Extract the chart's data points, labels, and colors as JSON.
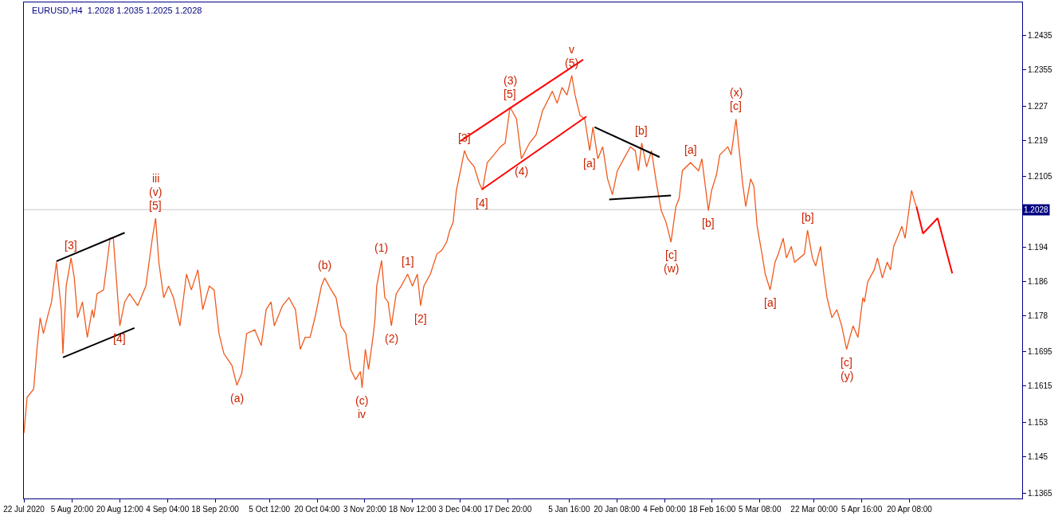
{
  "chart_data": {
    "type": "line",
    "title": "EURUSD,H4  1.2028 1.2035 1.2025 1.2028",
    "xlim": [
      "2020-07-22",
      "2021-05-25"
    ],
    "ylim": [
      1.1352,
      1.2513
    ],
    "xticks": [
      {
        "value": "2020-07-22",
        "label": "22 Jul 2020"
      },
      {
        "value": "2020-08-05T20:00",
        "label": "5 Aug 20:00"
      },
      {
        "value": "2020-08-20T12:00",
        "label": "20 Aug 12:00"
      },
      {
        "value": "2020-09-04T04:00",
        "label": "4 Sep 04:00"
      },
      {
        "value": "2020-09-18T20:00",
        "label": "18 Sep 20:00"
      },
      {
        "value": "2020-10-05T12:00",
        "label": "5 Oct 12:00"
      },
      {
        "value": "2020-10-20T04:00",
        "label": "20 Oct 04:00"
      },
      {
        "value": "2020-11-03T20:00",
        "label": "3 Nov 20:00"
      },
      {
        "value": "2020-11-18T12:00",
        "label": "18 Nov 12:00"
      },
      {
        "value": "2020-12-03T04:00",
        "label": "3 Dec 04:00"
      },
      {
        "value": "2020-12-17T20:00",
        "label": "17 Dec 20:00"
      },
      {
        "value": "2021-01-05T16:00",
        "label": "5 Jan 16:00"
      },
      {
        "value": "2021-01-20T08:00",
        "label": "20 Jan 08:00"
      },
      {
        "value": "2021-02-04T00:00",
        "label": "4 Feb 00:00"
      },
      {
        "value": "2021-02-18T16:00",
        "label": "18 Feb 16:00"
      },
      {
        "value": "2021-03-05T08:00",
        "label": "5 Mar 08:00"
      },
      {
        "value": "2021-03-22T00:00",
        "label": "22 Mar 00:00"
      },
      {
        "value": "2021-04-05T16:00",
        "label": "5 Apr 16:00"
      },
      {
        "value": "2021-04-20T08:00",
        "label": "20 Apr 08:00"
      }
    ],
    "yticks": [
      1.2435,
      1.2355,
      1.227,
      1.219,
      1.2105,
      1.194,
      1.186,
      1.178,
      1.1695,
      1.1615,
      1.153,
      1.145,
      1.1365
    ],
    "grid": false,
    "line_style": "solid",
    "ref_lines": [
      {
        "axis": "y",
        "value": 1.2028,
        "label": "1.2028",
        "color": "#c8c8c8"
      }
    ],
    "series": [
      {
        "color": "#f05a1e",
        "x": [
          "2020-07-22T00:00",
          "2020-07-23T00:00",
          "2020-07-25T00:00",
          "2020-07-26T00:00",
          "2020-07-27T00:00",
          "2020-07-28T00:00",
          "2020-07-29T12:00",
          "2020-07-30T12:00",
          "2020-08-01T00:00",
          "2020-08-02T12:00",
          "2020-08-03T00:00",
          "2020-08-04T00:00",
          "2020-08-05T12:00",
          "2020-08-06T12:00",
          "2020-08-07T12:00",
          "2020-08-09T00:00",
          "2020-08-10T12:00",
          "2020-08-12T00:00",
          "2020-08-12T12:00",
          "2020-08-13T12:00",
          "2020-08-15T12:00",
          "2020-08-17T12:00",
          "2020-08-18T12:00",
          "2020-08-19T12:00",
          "2020-08-20T12:00",
          "2020-08-22T00:00",
          "2020-08-23T12:00",
          "2020-08-26T00:00",
          "2020-08-28T12:00",
          "2020-08-30T12:00",
          "2020-08-31T12:00",
          "2020-09-01T12:00",
          "2020-09-03T00:00",
          "2020-09-04T12:00",
          "2020-09-06T00:00",
          "2020-09-08T00:00",
          "2020-09-10T00:00",
          "2020-09-11T12:00",
          "2020-09-13T12:00",
          "2020-09-15T00:00",
          "2020-09-17T00:00",
          "2020-09-18T12:00",
          "2020-09-20T00:00",
          "2020-09-21T12:00",
          "2020-09-24T00:00",
          "2020-09-25T12:00",
          "2020-09-27T00:00",
          "2020-09-28T12:00",
          "2020-10-01T00:00",
          "2020-10-03T00:00",
          "2020-10-04T12:00",
          "2020-10-06T00:00",
          "2020-10-07T00:00",
          "2020-10-09T12:00",
          "2020-10-11T12:00",
          "2020-10-13T12:00",
          "2020-10-15T00:00",
          "2020-10-16T12:00",
          "2020-10-18T00:00",
          "2020-10-19T12:00",
          "2020-10-21T12:00",
          "2020-10-22T12:00",
          "2020-10-24T12:00",
          "2020-10-26T00:00",
          "2020-10-27T12:00",
          "2020-10-29T00:00",
          "2020-10-30T12:00",
          "2020-11-01T00:00",
          "2020-11-02T12:00",
          "2020-11-03T00:00",
          "2020-11-04T00:00",
          "2020-11-05T00:00",
          "2020-11-06T12:00",
          "2020-11-07T00:00",
          "2020-11-07T12:00",
          "2020-11-09T00:00",
          "2020-11-10T00:00",
          "2020-11-11T00:00",
          "2020-11-12T00:00",
          "2020-11-13T12:00",
          "2020-11-15T00:00",
          "2020-11-17T00:00",
          "2020-11-18T12:00",
          "2020-11-20T00:00",
          "2020-11-21T00:00",
          "2020-11-22T00:00",
          "2020-11-24T00:00",
          "2020-11-26T00:00",
          "2020-11-27T12:00",
          "2020-11-29T00:00",
          "2020-11-30T00:00",
          "2020-12-01T00:00",
          "2020-12-02T00:00",
          "2020-12-03T12:00",
          "2020-12-04T12:00",
          "2020-12-05T12:00",
          "2020-12-07T12:00",
          "2020-12-09T00:00",
          "2020-12-10T00:00",
          "2020-12-11T12:00",
          "2020-12-13T12:00",
          "2020-12-15T12:00",
          "2020-12-17T00:00",
          "2020-12-18T12:00",
          "2020-12-20T12:00",
          "2020-12-22T00:00",
          "2020-12-24T12:00",
          "2020-12-26T12:00",
          "2020-12-28T12:00",
          "2020-12-31T12:00",
          "2021-01-02T00:00",
          "2021-01-03T12:00",
          "2021-01-05T00:00",
          "2021-01-06T12:00",
          "2021-01-07T12:00",
          "2021-01-09T00:00",
          "2021-01-10T12:00",
          "2021-01-12T00:00",
          "2021-01-13T00:00",
          "2021-01-14T12:00",
          "2021-01-16T00:00",
          "2021-01-17T12:00",
          "2021-01-19T00:00",
          "2021-01-20T12:00",
          "2021-01-22T12:00",
          "2021-01-24T12:00",
          "2021-01-26T00:00",
          "2021-01-27T00:00",
          "2021-01-28T00:00",
          "2021-01-29T12:00",
          "2021-01-31T00:00",
          "2021-02-01T12:00",
          "2021-02-03T00:00",
          "2021-02-04T12:00",
          "2021-02-06T00:00",
          "2021-02-07T12:00",
          "2021-02-08T12:00",
          "2021-02-09T12:00",
          "2021-02-12T00:00",
          "2021-02-14T12:00",
          "2021-02-15T12:00",
          "2021-02-17T12:00",
          "2021-02-18T12:00",
          "2021-02-20T00:00",
          "2021-02-21T00:00",
          "2021-02-23T12:00",
          "2021-02-24T12:00",
          "2021-02-26T00:00",
          "2021-02-27T00:00",
          "2021-02-28T00:00",
          "2021-03-01T00:00",
          "2021-03-02T12:00",
          "2021-03-03T12:00",
          "2021-03-04T12:00",
          "2021-03-06T00:00",
          "2021-03-07T00:00",
          "2021-03-08T12:00",
          "2021-03-10T00:00",
          "2021-03-11T00:00",
          "2021-03-12T12:00",
          "2021-03-13T12:00",
          "2021-03-15T00:00",
          "2021-03-16T00:00",
          "2021-03-19T00:00",
          "2021-03-20T00:00",
          "2021-03-21T12:00",
          "2021-03-22T12:00",
          "2021-03-24T00:00",
          "2021-03-25T00:00",
          "2021-03-26T00:00",
          "2021-03-27T12:00",
          "2021-03-29T00:00",
          "2021-03-30T12:00",
          "2021-04-01T00:00",
          "2021-04-02T00:00",
          "2021-04-03T00:00",
          "2021-04-04T12:00",
          "2021-04-06T00:00",
          "2021-04-06T12:00",
          "2021-04-07T12:00",
          "2021-04-09T12:00",
          "2021-04-10T12:00",
          "2021-04-12T00:00",
          "2021-04-13T12:00",
          "2021-04-14T12:00",
          "2021-04-15T12:00",
          "2021-04-17T00:00",
          "2021-04-18T00:00",
          "2021-04-19T00:00",
          "2021-04-20T00:00",
          "2021-04-21T00:00",
          "2021-04-22T00:00",
          "2021-04-22T12:00"
        ],
        "values": [
          1.1505,
          1.1589,
          1.1608,
          1.1701,
          1.1775,
          1.1738,
          1.1784,
          1.1812,
          1.1905,
          1.1794,
          1.1691,
          1.1849,
          1.1915,
          1.1868,
          1.1775,
          1.1812,
          1.1729,
          1.1794,
          1.1775,
          1.1831,
          1.184,
          1.1961,
          1.1961,
          1.1859,
          1.1756,
          1.1812,
          1.1831,
          1.1803,
          1.1849,
          1.1961,
          1.2008,
          1.1905,
          1.1822,
          1.1849,
          1.1822,
          1.1756,
          1.1877,
          1.184,
          1.1887,
          1.1794,
          1.1849,
          1.184,
          1.1738,
          1.1691,
          1.1663,
          1.1617,
          1.1645,
          1.1738,
          1.1747,
          1.171,
          1.1794,
          1.1812,
          1.1756,
          1.1803,
          1.1822,
          1.1794,
          1.1701,
          1.1729,
          1.1729,
          1.1775,
          1.1849,
          1.1868,
          1.184,
          1.1822,
          1.1756,
          1.1738,
          1.1654,
          1.163,
          1.1649,
          1.1611,
          1.1701,
          1.1654,
          1.1738,
          1.1775,
          1.1849,
          1.1909,
          1.1822,
          1.1812,
          1.1756,
          1.1831,
          1.1849,
          1.1877,
          1.1849,
          1.1877,
          1.1803,
          1.1849,
          1.1877,
          1.1924,
          1.1933,
          1.1952,
          1.198,
          1.1998,
          1.2073,
          1.2128,
          1.2166,
          1.2147,
          1.2128,
          1.2091,
          1.2073,
          1.2138,
          1.2156,
          1.2175,
          1.2184,
          1.2268,
          1.224,
          1.2147,
          1.2184,
          1.2203,
          1.2259,
          1.2305,
          1.2277,
          1.2314,
          1.2296,
          1.2342,
          1.2296,
          1.2249,
          1.224,
          1.2166,
          1.2221,
          1.2147,
          1.2175,
          1.21,
          1.2063,
          1.2119,
          1.2147,
          1.2175,
          1.2166,
          1.2119,
          1.2184,
          1.2128,
          1.2166,
          1.2091,
          1.2026,
          1.1998,
          1.1952,
          1.2035,
          1.2054,
          1.2119,
          1.2138,
          1.2119,
          1.2147,
          1.2026,
          1.2073,
          1.211,
          1.2156,
          1.2175,
          1.2156,
          1.224,
          1.2166,
          1.2091,
          1.2035,
          1.21,
          1.2082,
          1.1989,
          1.1924,
          1.1877,
          1.184,
          1.1905,
          1.1924,
          1.1961,
          1.1915,
          1.1942,
          1.1905,
          1.1924,
          1.198,
          1.1915,
          1.1896,
          1.1942,
          1.1877,
          1.1822,
          1.1775,
          1.1794,
          1.1756,
          1.1701,
          1.1729,
          1.1756,
          1.1729,
          1.1822,
          1.1812,
          1.1859,
          1.1887,
          1.1915,
          1.1868,
          1.1905,
          1.1887,
          1.1942,
          1.197,
          1.1989,
          1.1961,
          1.2017,
          1.2073,
          1.2045,
          1.2035
        ]
      },
      {
        "color": "#ff0000",
        "x": [
          "2021-04-22T12:00",
          "2021-04-24T12:00",
          "2021-04-29T00:00",
          "2021-05-03T12:00"
        ],
        "values": [
          1.2035,
          1.1972,
          1.2008,
          1.1879
        ]
      },
      {
        "color": "#000000",
        "x": [
          "2020-08-01",
          "2020-08-22"
        ],
        "values": [
          1.1907,
          1.1974
        ]
      },
      {
        "color": "#000000",
        "x": [
          "2020-08-03",
          "2020-08-25"
        ],
        "values": [
          1.1682,
          1.1751
        ]
      },
      {
        "color": "#ff0000",
        "x": [
          "2020-12-03T04:00",
          "2021-01-10"
        ],
        "values": [
          1.2188,
          1.2379
        ]
      },
      {
        "color": "#ff0000",
        "x": [
          "2020-12-10",
          "2021-01-11"
        ],
        "values": [
          1.2076,
          1.2246
        ]
      },
      {
        "color": "#000000",
        "x": [
          "2021-01-13T12:00",
          "2021-02-02T12:00"
        ],
        "values": [
          1.2221,
          1.2151
        ]
      },
      {
        "color": "#000000",
        "x": [
          "2021-01-18",
          "2021-02-06"
        ],
        "values": [
          1.2052,
          1.2061
        ]
      }
    ],
    "annotations": [
      {
        "text": "[5]",
        "x": "2020-08-31T12:00",
        "y": 1.2008
      },
      {
        "text": "(v)",
        "x": "2020-08-31T12:00",
        "y": 1.2008
      },
      {
        "text": "iii",
        "x": "2020-08-31T12:00",
        "y": 1.2008
      },
      {
        "text": "[3]",
        "x": "2020-08-05T12:00",
        "y": 1.1915
      },
      {
        "text": "[4]",
        "x": "2020-08-20T12:00",
        "y": 1.1756
      },
      {
        "text": "(a)",
        "x": "2020-09-25T12:00",
        "y": 1.1617
      },
      {
        "text": "(b)",
        "x": "2020-10-22T12:00",
        "y": 1.1868
      },
      {
        "text": "(c)",
        "x": "2020-11-03T00:00",
        "y": 1.1611
      },
      {
        "text": "iv",
        "x": "2020-11-03T00:00",
        "y": 1.1611
      },
      {
        "text": "(1)",
        "x": "2020-11-09T00:00",
        "y": 1.1909
      },
      {
        "text": "(2)",
        "x": "2020-11-12T00:00",
        "y": 1.1756
      },
      {
        "text": "[1]",
        "x": "2020-11-17T00:00",
        "y": 1.1877
      },
      {
        "text": "[2]",
        "x": "2020-11-21T00:00",
        "y": 1.1803
      },
      {
        "text": "[3]",
        "x": "2020-12-04T12:00",
        "y": 1.2166
      },
      {
        "text": "[4]",
        "x": "2020-12-10T00:00",
        "y": 1.2073
      },
      {
        "text": "[5]",
        "x": "2020-12-18T12:00",
        "y": 1.2268
      },
      {
        "text": "(3)",
        "x": "2020-12-18T12:00",
        "y": 1.2268
      },
      {
        "text": "(4)",
        "x": "2020-12-22T00:00",
        "y": 1.2147
      },
      {
        "text": "(5)",
        "x": "2021-01-06T12:00",
        "y": 1.2342
      },
      {
        "text": "v",
        "x": "2021-01-06T12:00",
        "y": 1.2342
      },
      {
        "text": "[a]",
        "x": "2021-01-12T00:00",
        "y": 1.2166
      },
      {
        "text": "[b]",
        "x": "2021-01-28T00:00",
        "y": 1.2184
      },
      {
        "text": "[c]",
        "x": "2021-02-06T00:00",
        "y": 1.1952
      },
      {
        "text": "(w)",
        "x": "2021-02-06T00:00",
        "y": 1.1952
      },
      {
        "text": "[a]",
        "x": "2021-02-12T00:00",
        "y": 1.2138
      },
      {
        "text": "[b]",
        "x": "2021-02-17T12:00",
        "y": 1.2026
      },
      {
        "text": "[c]",
        "x": "2021-02-26T00:00",
        "y": 1.224
      },
      {
        "text": "(x)",
        "x": "2021-02-26T00:00",
        "y": 1.224
      },
      {
        "text": "[a]",
        "x": "2021-03-08T12:00",
        "y": 1.184
      },
      {
        "text": "[b]",
        "x": "2021-03-20T00:00",
        "y": 1.198
      },
      {
        "text": "[c]",
        "x": "2021-04-01T00:00",
        "y": 1.1701
      },
      {
        "text": "(y)",
        "x": "2021-04-01T00:00",
        "y": 1.1701
      }
    ]
  }
}
